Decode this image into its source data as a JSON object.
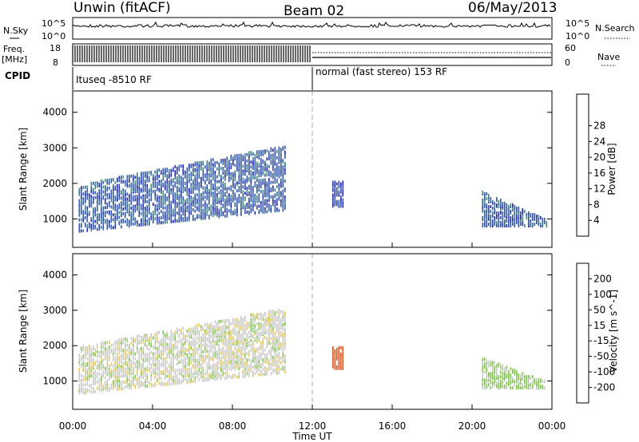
{
  "header": {
    "left": "Unwin (fitACF)",
    "center": "Beam 02",
    "right": "06/May/2013"
  },
  "summary": {
    "nsky_label": "N.Sky",
    "nsky_ticks": [
      "10^5",
      "10^0"
    ],
    "nsearch_label": "N.Search",
    "nsearch_ticks": [
      "10^5",
      "10^0"
    ],
    "freq_label": "Freq.",
    "freq_unit": "[MHz]",
    "freq_ticks": [
      "18",
      "8"
    ],
    "nave_label": "Nave",
    "nave_ticks": [
      "60",
      "0"
    ],
    "cpid_label": "CPID",
    "cpid_segments": [
      {
        "label": "Ituseq -8510 RF",
        "start_hour": 0
      },
      {
        "label": "normal (fast stereo) 153 RF",
        "start_hour": 12
      }
    ]
  },
  "colors": {
    "power": [
      "#1e1ec8",
      "#2f55b4",
      "#3c8c78",
      "#50aa50",
      "#a0d23c",
      "#f0c820",
      "#f08c14",
      "#e65014",
      "#e61414"
    ],
    "velocity": [
      "#e61414",
      "#f05014",
      "#f08c14",
      "#f0c832",
      "#c8c8c8",
      "#78c83c",
      "#3c9650",
      "#2850a0",
      "#1e1eb4"
    ]
  },
  "chart_data": [
    {
      "type": "heatmap",
      "name": "power",
      "xlabel": "",
      "ylabel": "Slant Range [km]",
      "xlim": [
        0,
        24
      ],
      "ylim": [
        200,
        4600
      ],
      "yticks": [
        "1000",
        "2000",
        "3000",
        "4000"
      ],
      "colorbar_label": "Power [dB]",
      "colorbar_ticks": [
        "4",
        "8",
        "12",
        "16",
        "20",
        "24",
        "28"
      ],
      "features": [
        {
          "h0": 0.3,
          "h1": 10.6,
          "r_lo0": 700,
          "r_lo1": 1300,
          "r_hi0": 2000,
          "r_hi1": 3100,
          "density": 0.55,
          "value": 6
        },
        {
          "h0": 13.0,
          "h1": 13.5,
          "r_lo0": 1400,
          "r_lo1": 1400,
          "r_hi0": 2100,
          "r_hi1": 2100,
          "density": 0.7,
          "value": 5
        },
        {
          "h0": 20.5,
          "h1": 23.8,
          "r_lo0": 850,
          "r_lo1": 850,
          "r_hi0": 1800,
          "r_hi1": 1000,
          "density": 0.6,
          "value": 6
        }
      ]
    },
    {
      "type": "heatmap",
      "name": "velocity",
      "xlabel": "Time UT",
      "ylabel": "Slant Range [km]",
      "xlim": [
        0,
        24
      ],
      "ylim": [
        200,
        4600
      ],
      "xticks": [
        "00:00",
        "04:00",
        "08:00",
        "12:00",
        "16:00",
        "20:00",
        "00:00"
      ],
      "yticks": [
        "1000",
        "2000",
        "3000",
        "4000"
      ],
      "colorbar_label": "Velocity [m s^-1]",
      "colorbar_ticks": [
        "-200",
        "-100",
        "-50",
        "-15",
        "15",
        "50",
        "100",
        "200"
      ],
      "features": [
        {
          "h0": 0.3,
          "h1": 10.6,
          "r_lo0": 700,
          "r_lo1": 1300,
          "r_hi0": 2000,
          "r_hi1": 3100,
          "density": 0.55,
          "value": 0
        },
        {
          "h0": 13.0,
          "h1": 13.5,
          "r_lo0": 1400,
          "r_lo1": 1400,
          "r_hi0": 2000,
          "r_hi1": 2000,
          "density": 0.7,
          "value": -180
        },
        {
          "h0": 20.5,
          "h1": 23.8,
          "r_lo0": 850,
          "r_lo1": 850,
          "r_hi0": 1700,
          "r_hi1": 1000,
          "density": 0.6,
          "value": 20
        }
      ]
    }
  ]
}
